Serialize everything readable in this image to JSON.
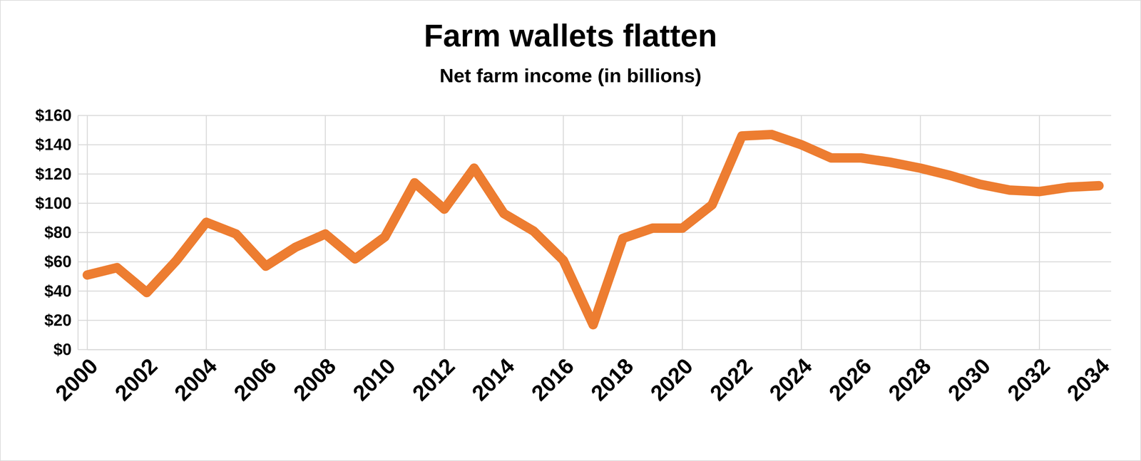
{
  "chart_data": {
    "type": "line",
    "title": "Farm wallets flatten",
    "subtitle": "Net farm income (in billions)",
    "x": [
      2000,
      2001,
      2002,
      2003,
      2004,
      2005,
      2006,
      2007,
      2008,
      2009,
      2010,
      2011,
      2012,
      2013,
      2014,
      2015,
      2016,
      2017,
      2018,
      2019,
      2020,
      2021,
      2022,
      2023,
      2024,
      2025,
      2026,
      2027,
      2028,
      2029,
      2030,
      2031,
      2032,
      2033,
      2034
    ],
    "series": [
      {
        "name": "Net farm income",
        "color": "#ed7d31",
        "values": [
          51,
          56,
          39,
          61,
          87,
          79,
          57,
          70,
          79,
          62,
          77,
          114,
          96,
          124,
          93,
          81,
          61,
          17,
          76,
          83,
          83,
          99,
          146,
          147,
          140,
          131,
          131,
          128,
          124,
          119,
          113,
          109,
          108,
          111,
          112
        ]
      }
    ],
    "xlim": [
      2000,
      2034
    ],
    "xticks": [
      2000,
      2002,
      2004,
      2006,
      2008,
      2010,
      2012,
      2014,
      2016,
      2018,
      2020,
      2022,
      2024,
      2026,
      2028,
      2030,
      2032,
      2034
    ],
    "ylim": [
      0,
      160
    ],
    "yticks": [
      {
        "value": 0,
        "label": "$0"
      },
      {
        "value": 20,
        "label": "$20"
      },
      {
        "value": 40,
        "label": "$40"
      },
      {
        "value": 60,
        "label": "$60"
      },
      {
        "value": 80,
        "label": "$80"
      },
      {
        "value": 100,
        "label": "$100"
      },
      {
        "value": 120,
        "label": "$120"
      },
      {
        "value": 140,
        "label": "$140"
      },
      {
        "value": 160,
        "label": "$160"
      }
    ],
    "grid": true
  }
}
